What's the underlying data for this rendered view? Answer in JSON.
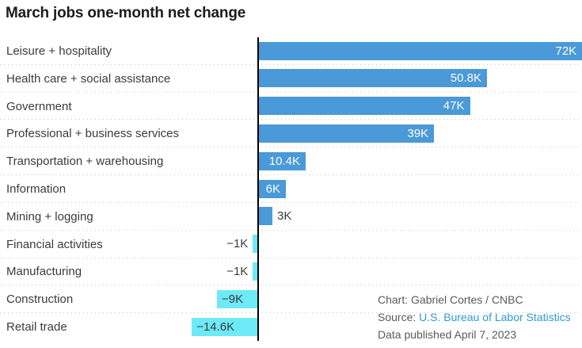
{
  "title": "March jobs one-month net change",
  "colors": {
    "positive_bar": "#4a99d8",
    "negative_bar": "#6ee9f7",
    "axis_line": "#000000",
    "category_text": "#3a3b3d",
    "value_text_inside_positive": "#ffffff",
    "value_text_dark": "#3a3b3d",
    "separator_dots": "#c6c6c6",
    "attribution_text": "#595a5c",
    "source_link": "#2e9bd6",
    "title_text": "#1c1c1e"
  },
  "chart_data": {
    "type": "bar",
    "orientation": "horizontal",
    "title": "March jobs one-month net change",
    "unit": "K (thousands of jobs)",
    "xlim": [
      -14.6,
      72
    ],
    "grid": "dotted row separators only, single vertical zero axis",
    "legend": "none",
    "categories": [
      "Leisure + hospitality",
      "Health care + social assistance",
      "Government",
      "Professional + business services",
      "Transportation + warehousing",
      "Information",
      "Mining + logging",
      "Financial activities",
      "Manufacturing",
      "Construction",
      "Retail trade"
    ],
    "values": [
      72,
      50.8,
      47,
      39,
      10.4,
      6,
      3,
      -1,
      -1,
      -9,
      -14.6
    ],
    "value_labels": [
      "72K",
      "50.8K",
      "47K",
      "39K",
      "10.4K",
      "6K",
      "3K",
      "−1K",
      "−1K",
      "−9K",
      "−14.6K"
    ]
  },
  "attribution": {
    "chart_credit": "Chart: Gabriel Cortes / CNBC",
    "source_label": "Source: ",
    "source_link": "U.S. Bureau of Labor Statistics",
    "data_published": "Data published April 7, 2023"
  }
}
